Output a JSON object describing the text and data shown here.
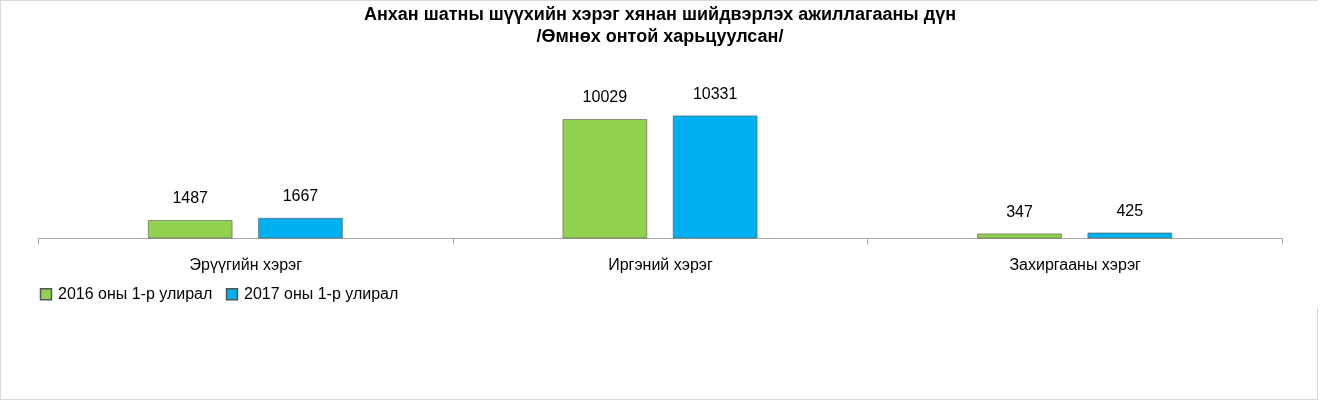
{
  "chart_data": {
    "type": "bar",
    "title": "Анхан шатны шүүхийн хэрэг хянан шийдвэрлэх ажиллагааны дүн",
    "subtitle": "/Өмнөх онтой харьцуулсан/",
    "categories": [
      "Эрүүгийн хэрэг",
      "Иргэний хэрэг",
      "Захиргааны хэрэг"
    ],
    "series": [
      {
        "name": "2016 оны 1-р улирал",
        "color": "#92d050",
        "values": [
          1487,
          10029,
          347
        ]
      },
      {
        "name": "2017 оны 1-р улирал",
        "color": "#00b0f0",
        "values": [
          1667,
          10331,
          425
        ]
      }
    ],
    "data_labels": true,
    "legend": "bottom",
    "grid": false
  }
}
